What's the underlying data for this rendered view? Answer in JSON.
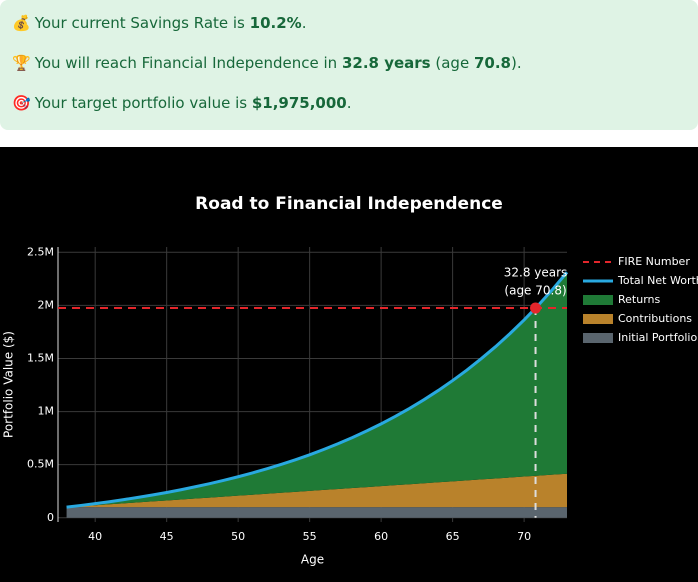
{
  "messages": [
    {
      "icon": "💰",
      "parts": [
        "Your current Savings Rate is ",
        "10.2%",
        "."
      ]
    },
    {
      "icon": "🏆",
      "parts": [
        "You will reach Financial Independence in ",
        "32.8 years",
        " (age ",
        "70.8",
        ")."
      ]
    },
    {
      "icon": "🎯",
      "parts": [
        "Your target portfolio value is ",
        "$1,975,000",
        "."
      ]
    }
  ],
  "chart_data": {
    "type": "area",
    "title": "Road to Financial Independence",
    "xlabel": "Age",
    "ylabel": "Portfolio Value ($)",
    "x": [
      38,
      39,
      40,
      41,
      42,
      43,
      44,
      45,
      46,
      47,
      48,
      49,
      50,
      51,
      52,
      53,
      54,
      55,
      56,
      57,
      58,
      59,
      60,
      61,
      62,
      63,
      64,
      65,
      66,
      67,
      68,
      69,
      70,
      71,
      72,
      73
    ],
    "series": [
      {
        "name": "Total Net Worth",
        "type": "line",
        "color": "#29a9e0",
        "values": [
          100000,
          116000,
          133000,
          151000,
          171000,
          192000,
          214000,
          238000,
          264000,
          292000,
          321000,
          353000,
          386000,
          422000,
          461000,
          502000,
          546000,
          593000,
          644000,
          698000,
          756000,
          818000,
          884000,
          955000,
          1031000,
          1112000,
          1199000,
          1292000,
          1391000,
          1498000,
          1611000,
          1733000,
          1863000,
          2003000,
          2152000,
          2312000
        ]
      },
      {
        "name": "Returns",
        "type": "area",
        "color": "#1f7a36",
        "values": [
          0,
          7000,
          15000,
          24000,
          35000,
          47000,
          60000,
          75000,
          92000,
          111000,
          131000,
          154000,
          178000,
          205000,
          235000,
          267000,
          302000,
          340000,
          382000,
          427000,
          476000,
          529000,
          586000,
          648000,
          715000,
          787000,
          865000,
          949000,
          1039000,
          1137000,
          1241000,
          1354000,
          1475000,
          1606000,
          1746000,
          1897000
        ]
      },
      {
        "name": "Contributions",
        "type": "area",
        "color": "#b9822b",
        "values": [
          0,
          9000,
          18000,
          27000,
          36000,
          45000,
          54000,
          63000,
          72000,
          81000,
          90000,
          99000,
          108000,
          117000,
          126000,
          135000,
          144000,
          153000,
          162000,
          171000,
          180000,
          189000,
          198000,
          207000,
          216000,
          225000,
          234000,
          243000,
          252000,
          261000,
          270000,
          279000,
          288000,
          297000,
          306000,
          315000
        ]
      },
      {
        "name": "Initial Portfolio",
        "type": "area",
        "color": "#5a656e",
        "values": [
          100000,
          100000,
          100000,
          100000,
          100000,
          100000,
          100000,
          100000,
          100000,
          100000,
          100000,
          100000,
          100000,
          100000,
          100000,
          100000,
          100000,
          100000,
          100000,
          100000,
          100000,
          100000,
          100000,
          100000,
          100000,
          100000,
          100000,
          100000,
          100000,
          100000,
          100000,
          100000,
          100000,
          100000,
          100000,
          100000
        ]
      }
    ],
    "fire": {
      "name": "FIRE Number",
      "value": 1975000,
      "color": "#e3262b"
    },
    "marker": {
      "x": 70.8,
      "y": 1975000,
      "color": "#e3262b",
      "label": [
        "32.8 years",
        "(age 70.8)"
      ]
    },
    "xlim": [
      37.4,
      73
    ],
    "xticks": [
      40,
      45,
      50,
      55,
      60,
      65,
      70
    ],
    "ylim": [
      -40000,
      2550000
    ],
    "yticks": [
      0,
      {
        "value": 500000,
        "label": "0.5M"
      },
      {
        "value": 1000000,
        "label": "1M"
      },
      {
        "value": 1500000,
        "label": "1.5M"
      },
      {
        "value": 2000000,
        "label": "2M"
      },
      {
        "value": 2500000,
        "label": "2.5M"
      }
    ],
    "grid": true
  }
}
